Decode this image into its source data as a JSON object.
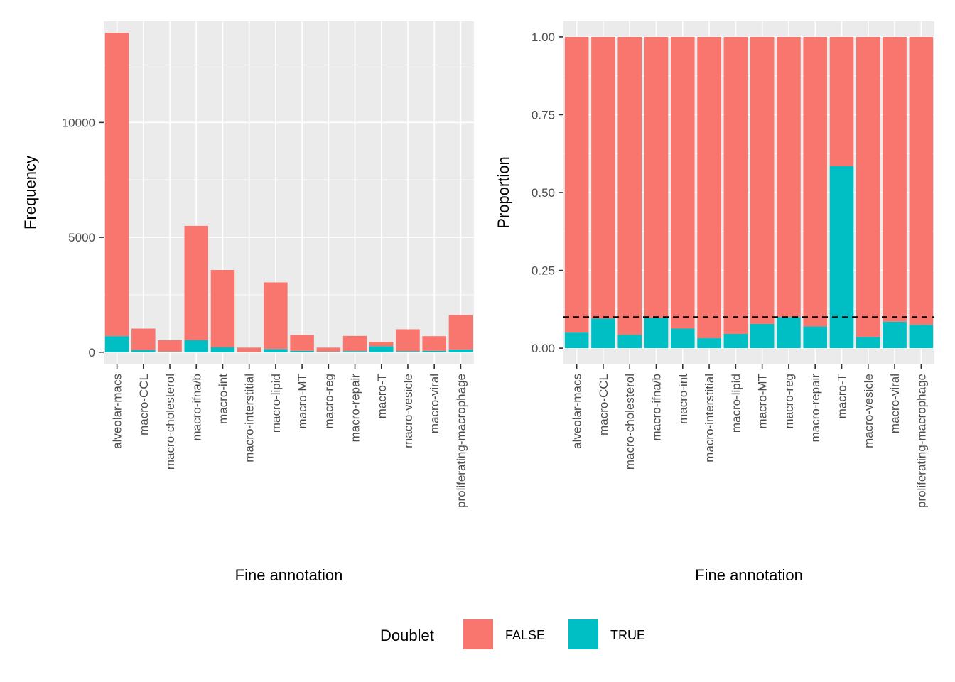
{
  "chart_data": [
    {
      "type": "bar",
      "stacked": true,
      "title": "",
      "xlabel": "Fine annotation",
      "ylabel": "Frequency",
      "ylim": [
        -500,
        14400
      ],
      "yticks": [
        0,
        5000,
        10000
      ],
      "ytick_labels": [
        "0",
        "5000",
        "10000"
      ],
      "grid": true,
      "categories": [
        "alveolar-macs",
        "macro-CCL",
        "macro-cholesterol",
        "macro-ifna/b",
        "macro-int",
        "macro-interstitial",
        "macro-lipid",
        "macro-MT",
        "macro-reg",
        "macro-repair",
        "macro-T",
        "macro-vesicle",
        "macro-viral",
        "proliferating-macrophage"
      ],
      "series": [
        {
          "name": "TRUE",
          "color": "#00BFC4",
          "values": [
            700,
            100,
            20,
            530,
            220,
            5,
            140,
            60,
            20,
            50,
            260,
            40,
            60,
            120
          ]
        },
        {
          "name": "FALSE",
          "color": "#F8766D",
          "values": [
            13200,
            930,
            500,
            4970,
            3360,
            195,
            2900,
            690,
            180,
            660,
            190,
            960,
            640,
            1500
          ]
        }
      ]
    },
    {
      "type": "bar",
      "stacked": true,
      "title": "",
      "xlabel": "Fine annotation",
      "ylabel": "Proportion",
      "ylim": [
        -0.05,
        1.05
      ],
      "yticks": [
        0,
        0.25,
        0.5,
        0.75,
        1
      ],
      "ytick_labels": [
        "0.00",
        "0.25",
        "0.50",
        "0.75",
        "1.00"
      ],
      "grid": true,
      "reference_line": {
        "y": 0.1,
        "style": "dashed",
        "color": "#000000"
      },
      "categories": [
        "alveolar-macs",
        "macro-CCL",
        "macro-cholesterol",
        "macro-ifna/b",
        "macro-int",
        "macro-interstitial",
        "macro-lipid",
        "macro-MT",
        "macro-reg",
        "macro-repair",
        "macro-T",
        "macro-vesicle",
        "macro-viral",
        "proliferating-macrophage"
      ],
      "series": [
        {
          "name": "TRUE",
          "color": "#00BFC4",
          "values": [
            0.05,
            0.095,
            0.043,
            0.097,
            0.063,
            0.032,
            0.046,
            0.078,
            0.1,
            0.07,
            0.585,
            0.036,
            0.085,
            0.075
          ]
        },
        {
          "name": "FALSE",
          "color": "#F8766D",
          "values": [
            0.95,
            0.905,
            0.957,
            0.903,
            0.937,
            0.968,
            0.954,
            0.922,
            0.9,
            0.93,
            0.415,
            0.964,
            0.915,
            0.925
          ]
        }
      ]
    }
  ],
  "legend": {
    "title": "Doublet",
    "position": "bottom",
    "items": [
      {
        "label": "FALSE",
        "color": "#F8766D"
      },
      {
        "label": "TRUE",
        "color": "#00BFC4"
      }
    ]
  }
}
